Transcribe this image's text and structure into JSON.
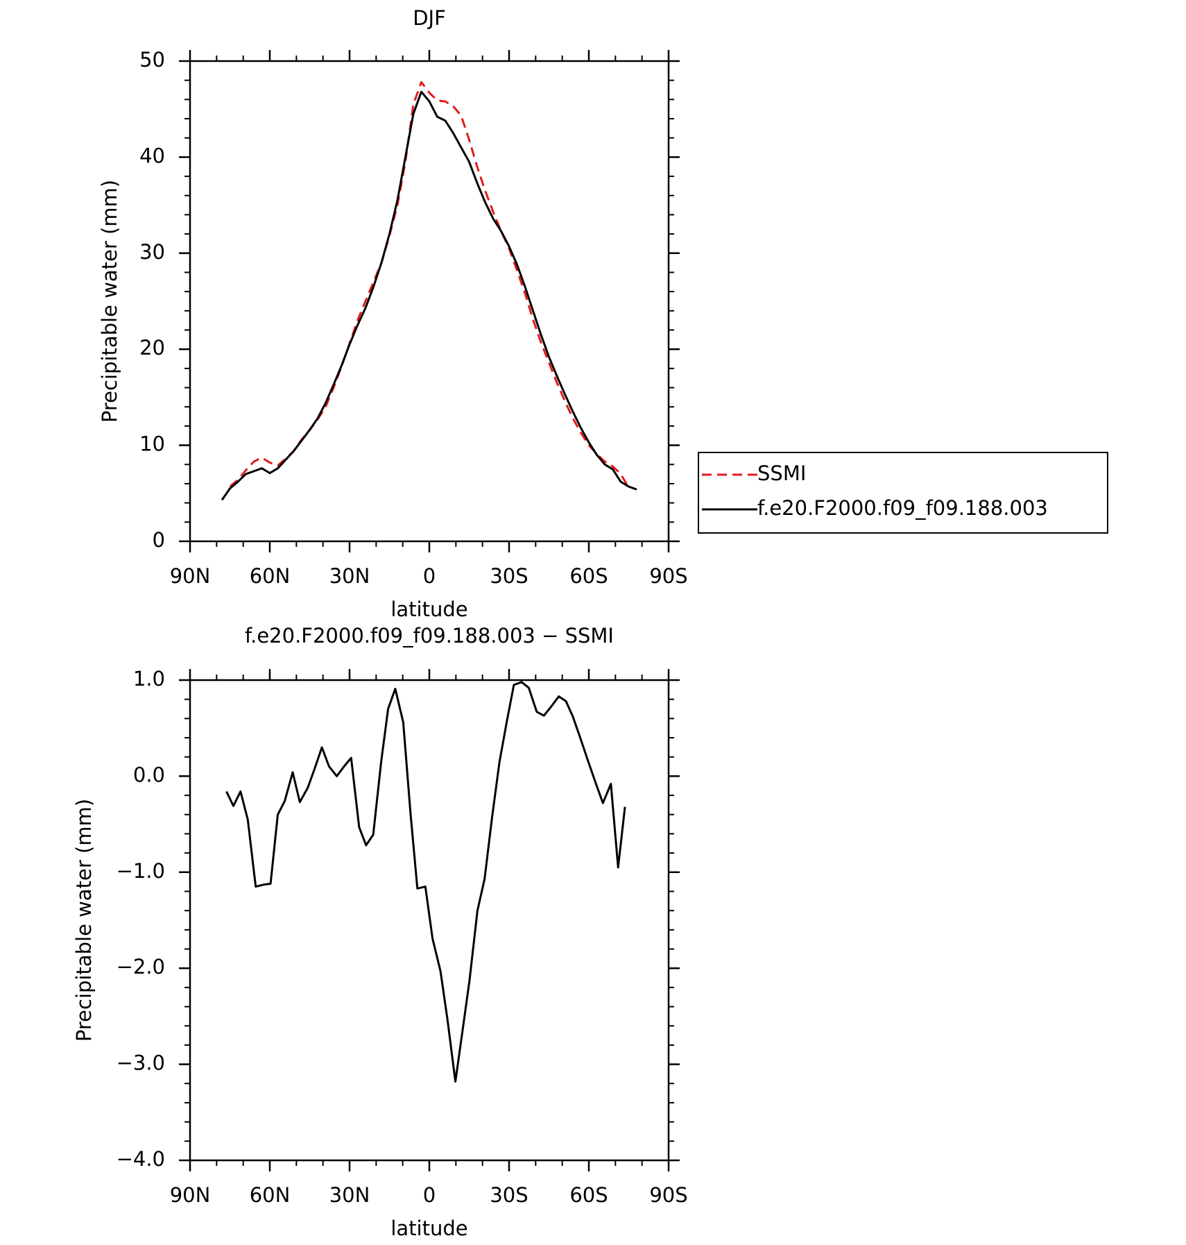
{
  "chart_data": [
    {
      "type": "line",
      "title": "DJF",
      "x_label": "latitude",
      "y_label": "Precipitable water (mm)",
      "x": [
        78,
        75,
        72,
        69,
        66,
        63,
        60,
        57,
        54,
        51,
        48,
        45,
        42,
        39,
        36,
        33,
        30,
        27,
        24,
        21,
        18,
        15,
        12,
        9,
        6,
        3,
        0,
        -3,
        -6,
        -9,
        -12,
        -15,
        -18,
        -21,
        -24,
        -27,
        -30,
        -33,
        -36,
        -39,
        -42,
        -45,
        -48,
        -51,
        -54,
        -57,
        -60,
        -63,
        -66,
        -69,
        -72,
        -75,
        -78
      ],
      "series": [
        {
          "name": "SSMI",
          "color": "#e41a1c",
          "line_style": "dashed",
          "values": [
            null,
            5.7,
            6.4,
            7.4,
            8.3,
            8.7,
            8.2,
            7.9,
            8.6,
            9.4,
            10.6,
            11.6,
            12.7,
            14.0,
            16.0,
            18.2,
            20.6,
            23.0,
            25.0,
            27.0,
            29.0,
            31.8,
            35.0,
            39.5,
            45.5,
            47.8,
            46.7,
            45.9,
            45.8,
            45.3,
            44.3,
            41.8,
            39.0,
            36.5,
            34.3,
            32.3,
            30.5,
            28.2,
            25.8,
            23.1,
            20.7,
            18.6,
            16.5,
            14.6,
            12.8,
            11.3,
            10.0,
            9.1,
            8.3,
            7.8,
            7.0,
            5.6,
            null
          ]
        },
        {
          "name": "f.e20.F2000.f09_f09.188.003",
          "color": "#000000",
          "line_style": "solid",
          "values": [
            4.3,
            5.5,
            6.2,
            7.0,
            7.3,
            7.6,
            7.1,
            7.6,
            8.5,
            9.4,
            10.5,
            11.6,
            12.8,
            14.4,
            16.3,
            18.3,
            20.5,
            22.5,
            24.3,
            26.5,
            29.0,
            32.0,
            35.5,
            40.0,
            44.5,
            46.8,
            45.8,
            44.2,
            43.8,
            42.5,
            41.0,
            39.5,
            37.3,
            35.3,
            33.6,
            32.3,
            30.7,
            28.8,
            26.5,
            24.0,
            21.5,
            19.2,
            17.2,
            15.3,
            13.5,
            11.8,
            10.3,
            9.0,
            8.0,
            7.5,
            6.2,
            5.7,
            5.4
          ]
        }
      ],
      "xlim": [
        90,
        -90
      ],
      "xticks": [
        {
          "value": 90,
          "label": "90N"
        },
        {
          "value": 60,
          "label": "60N"
        },
        {
          "value": 30,
          "label": "30N"
        },
        0,
        {
          "value": -30,
          "label": "30S"
        },
        {
          "value": -60,
          "label": "60S"
        },
        {
          "value": -90,
          "label": "90S"
        }
      ],
      "ylim": [
        0,
        50
      ],
      "yticks": [
        0,
        10,
        20,
        30,
        40,
        50
      ],
      "legend": "right"
    },
    {
      "type": "line",
      "title": "f.e20.F2000.f09_f09.188.003 − SSMI",
      "x_label": "latitude",
      "y_label": "Precipitable water (mm)",
      "x": [
        76.3,
        73.7,
        71,
        68.3,
        65.3,
        62.4,
        59.7,
        57,
        54.4,
        51.4,
        48.7,
        45.7,
        43.1,
        40.4,
        37.7,
        34.8,
        32.1,
        29.4,
        26.4,
        23.8,
        21.1,
        18.1,
        15.5,
        12.8,
        9.8,
        7.1,
        4.5,
        1.5,
        -1.2,
        -4.2,
        -6.8,
        -9.8,
        -12.5,
        -15.1,
        -18.1,
        -20.8,
        -23.5,
        -26.4,
        -29.1,
        -31.8,
        -34.7,
        -37.4,
        -40.4,
        -43.1,
        -45.7,
        -48.7,
        -51.4,
        -54,
        -57,
        -59.7,
        -62.7,
        -65.3,
        -68.3,
        -71,
        -73.6
      ],
      "series": [
        {
          "color": "#000000",
          "line_style": "solid",
          "values": [
            -0.16,
            -0.31,
            -0.16,
            -0.45,
            -1.15,
            -1.13,
            -1.12,
            -0.4,
            -0.26,
            0.04,
            -0.27,
            -0.12,
            0.08,
            0.3,
            0.1,
            0.0,
            0.1,
            0.19,
            -0.53,
            -0.72,
            -0.61,
            0.15,
            0.7,
            0.91,
            0.56,
            -0.38,
            -1.17,
            -1.15,
            -1.69,
            -2.03,
            -2.53,
            -3.18,
            -2.65,
            -2.13,
            -1.4,
            -1.07,
            -0.45,
            0.15,
            0.56,
            0.95,
            0.98,
            0.92,
            0.67,
            0.63,
            0.72,
            0.83,
            0.78,
            0.62,
            0.38,
            0.16,
            -0.08,
            -0.28,
            -0.08,
            -0.95,
            -0.32
          ]
        }
      ],
      "xlim": [
        90,
        -90
      ],
      "xticks": [
        {
          "value": 90,
          "label": "90N"
        },
        {
          "value": 60,
          "label": "60N"
        },
        {
          "value": 30,
          "label": "30N"
        },
        0,
        {
          "value": -30,
          "label": "30S"
        },
        {
          "value": -60,
          "label": "60S"
        },
        {
          "value": -90,
          "label": "90S"
        }
      ],
      "ylim": [
        -4,
        1
      ],
      "yticks": [
        {
          "value": 1,
          "label": "1.0"
        },
        {
          "value": 0,
          "label": "0.0"
        },
        {
          "value": -1,
          "label": "−1.0"
        },
        {
          "value": -2,
          "label": "−2.0"
        },
        {
          "value": -3,
          "label": "−3.0"
        },
        {
          "value": -4,
          "label": "−4.0"
        }
      ]
    }
  ]
}
